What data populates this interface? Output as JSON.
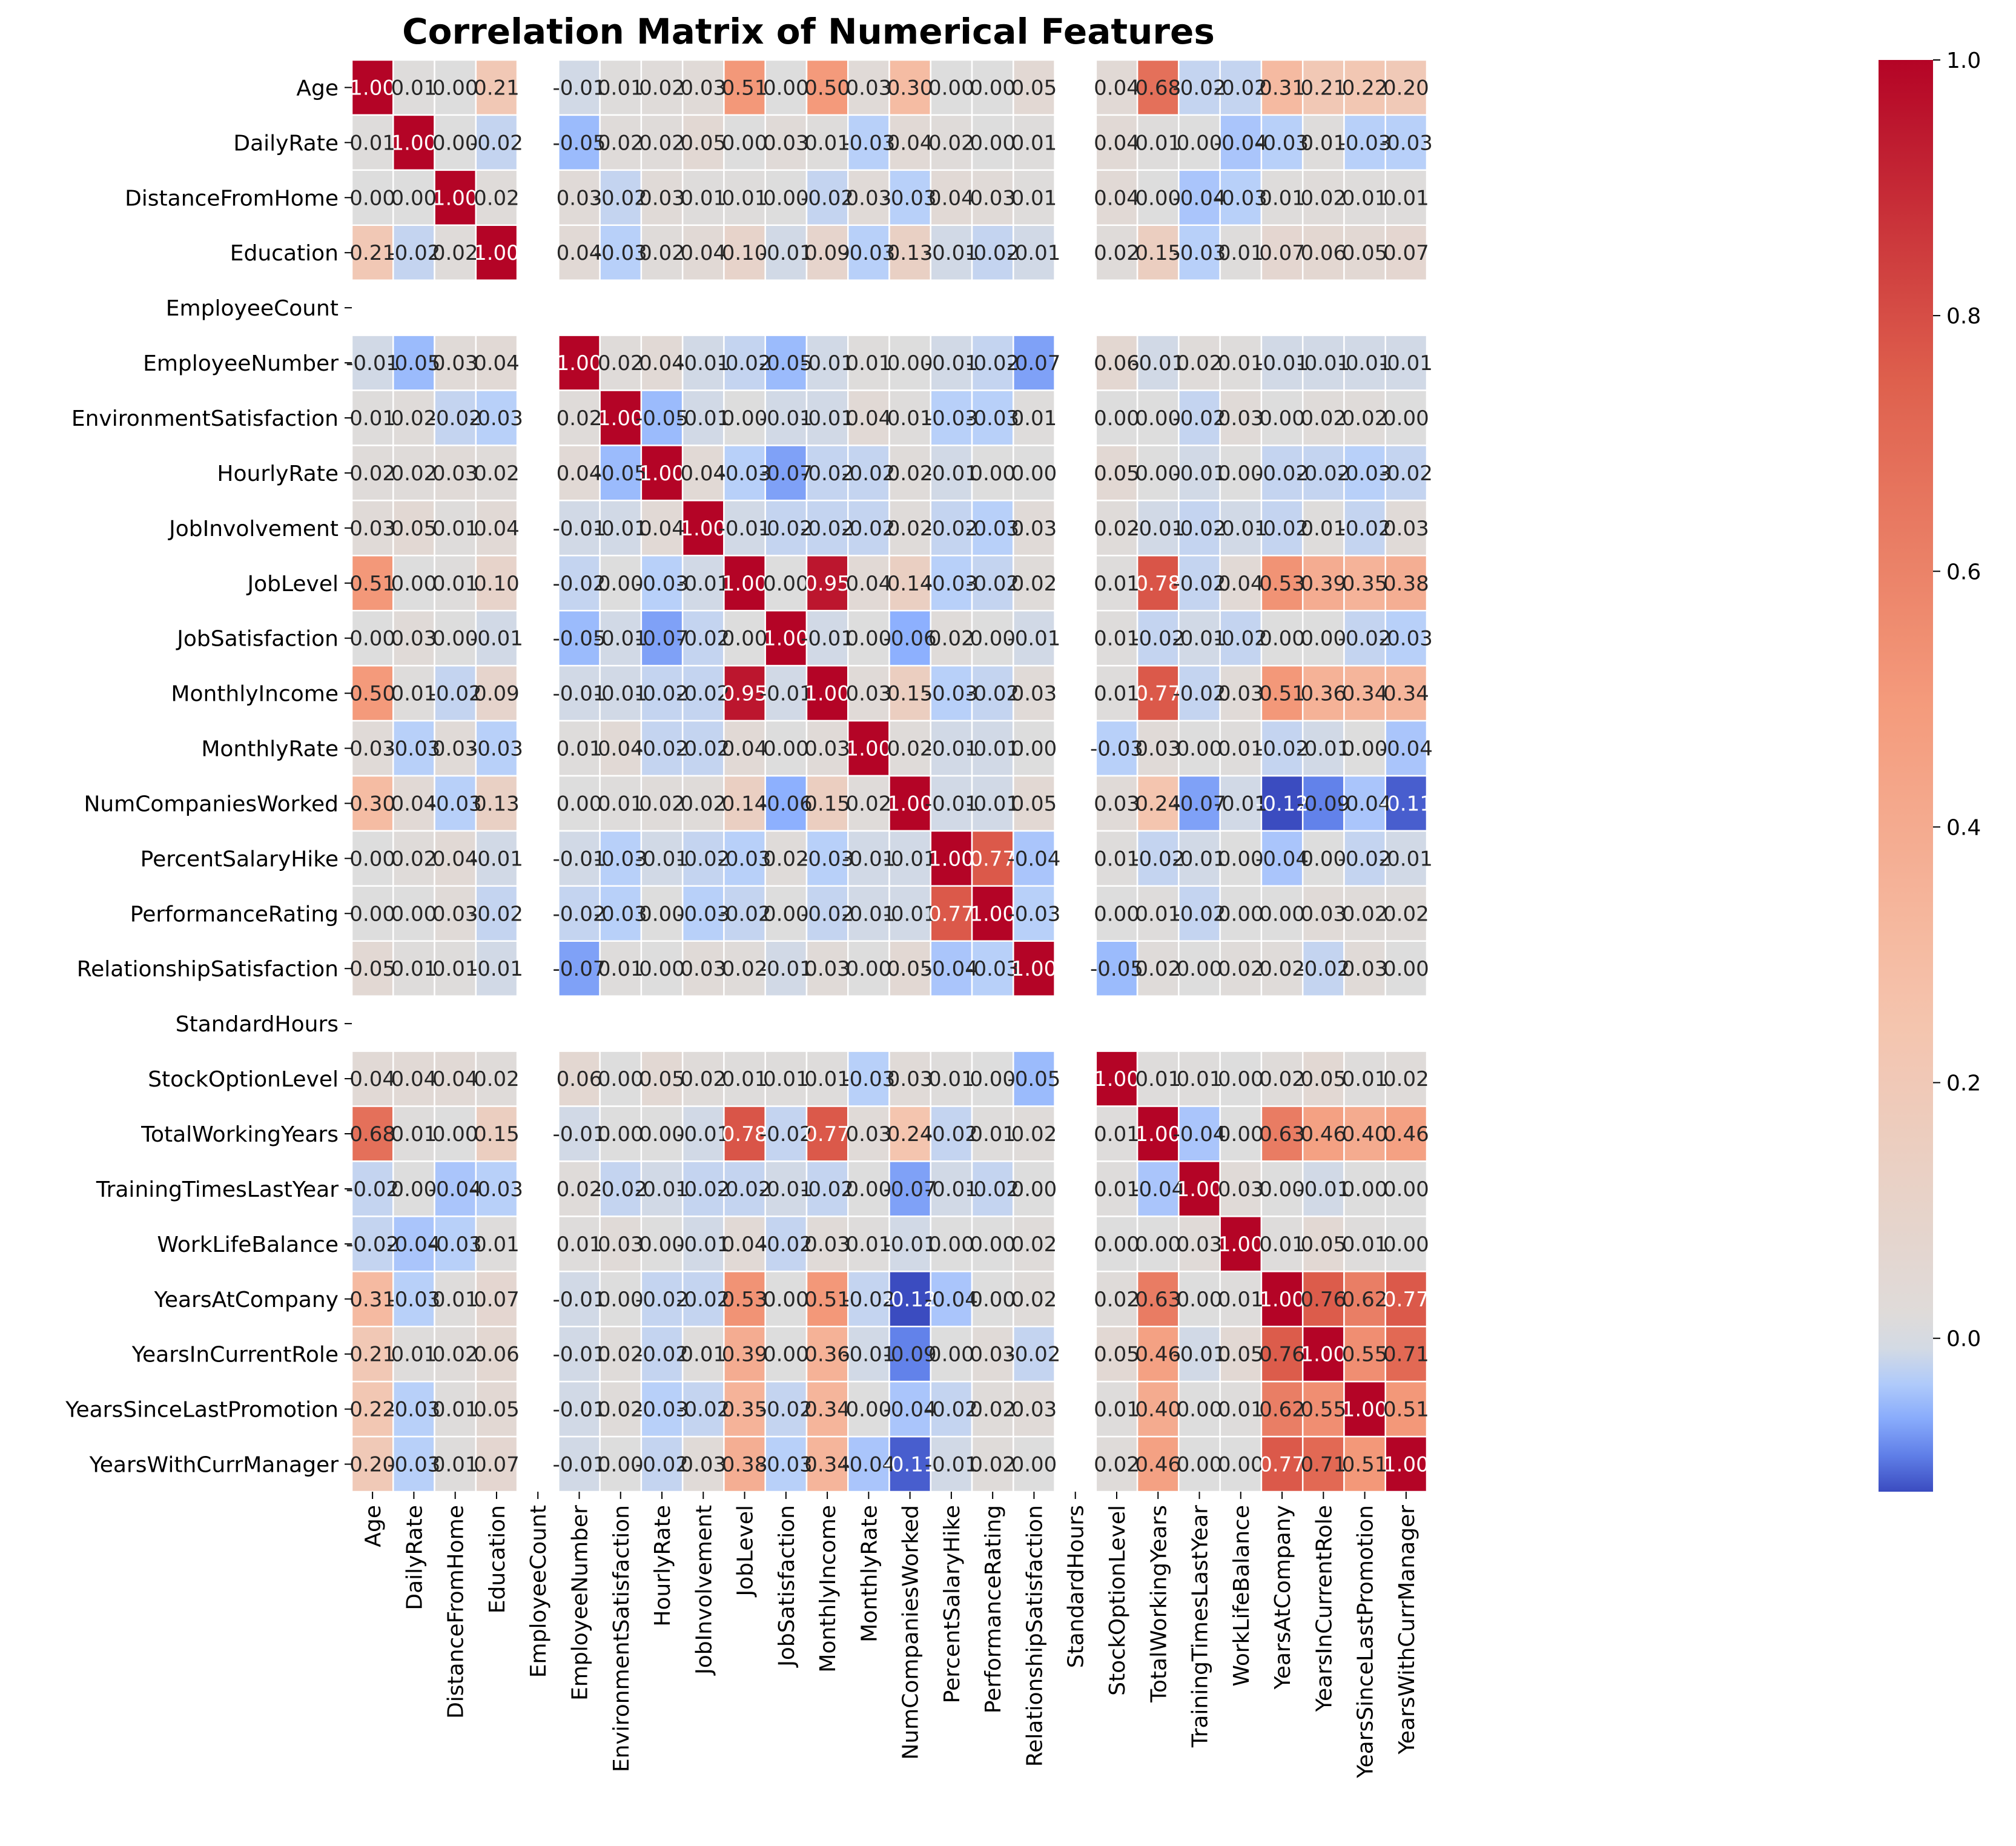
{
  "chart_data": {
    "type": "heatmap",
    "title": "Correlation Matrix of Numerical Features",
    "xlabel": "",
    "ylabel": "",
    "colormap": "coolwarm",
    "color_range": [
      -0.12,
      1.0
    ],
    "colorbar_ticks": [
      {
        "value": 0.0,
        "label": "0.0"
      },
      {
        "value": 0.2,
        "label": "0.2"
      },
      {
        "value": 0.4,
        "label": "0.4"
      },
      {
        "value": 0.6,
        "label": "0.6"
      },
      {
        "value": 0.8,
        "label": "0.8"
      },
      {
        "value": 1.0,
        "label": "1.0"
      }
    ],
    "colorbar_tick_labels": [
      "0.0",
      "0.2",
      "0.4",
      "0.6",
      "0.8",
      "1.0"
    ],
    "categories": [
      "Age",
      "DailyRate",
      "DistanceFromHome",
      "Education",
      "EmployeeCount",
      "EmployeeNumber",
      "EnvironmentSatisfaction",
      "HourlyRate",
      "JobInvolvement",
      "JobLevel",
      "JobSatisfaction",
      "MonthlyIncome",
      "MonthlyRate",
      "NumCompaniesWorked",
      "PercentSalaryHike",
      "PerformanceRating",
      "RelationshipSatisfaction",
      "StandardHours",
      "StockOptionLevel",
      "TotalWorkingYears",
      "TrainingTimesLastYear",
      "WorkLifeBalance",
      "YearsAtCompany",
      "YearsInCurrentRole",
      "YearsSinceLastPromotion",
      "YearsWithCurrManager"
    ],
    "values": [
      [
        1.0,
        0.01,
        -0.0,
        0.21,
        null,
        -0.01,
        0.01,
        0.02,
        0.03,
        0.51,
        -0.0,
        0.5,
        0.03,
        0.3,
        0.0,
        0.0,
        0.05,
        null,
        0.04,
        0.68,
        -0.02,
        -0.02,
        0.31,
        0.21,
        0.22,
        0.2
      ],
      [
        0.01,
        1.0,
        -0.0,
        -0.02,
        null,
        -0.05,
        0.02,
        0.02,
        0.05,
        0.0,
        0.03,
        0.01,
        -0.03,
        0.04,
        0.02,
        0.0,
        0.01,
        null,
        0.04,
        0.01,
        0.0,
        -0.04,
        -0.03,
        0.01,
        -0.03,
        -0.03
      ],
      [
        -0.0,
        -0.0,
        1.0,
        0.02,
        null,
        0.03,
        -0.02,
        0.03,
        0.01,
        0.01,
        -0.0,
        -0.02,
        0.03,
        -0.03,
        0.04,
        0.03,
        0.01,
        null,
        0.04,
        0.0,
        -0.04,
        -0.03,
        0.01,
        0.02,
        0.01,
        0.01
      ],
      [
        0.21,
        -0.02,
        0.02,
        1.0,
        null,
        0.04,
        -0.03,
        0.02,
        0.04,
        0.1,
        -0.01,
        0.09,
        -0.03,
        0.13,
        -0.01,
        -0.02,
        -0.01,
        null,
        0.02,
        0.15,
        -0.03,
        0.01,
        0.07,
        0.06,
        0.05,
        0.07
      ],
      [
        null,
        null,
        null,
        null,
        null,
        null,
        null,
        null,
        null,
        null,
        null,
        null,
        null,
        null,
        null,
        null,
        null,
        null,
        null,
        null,
        null,
        null,
        null,
        null,
        null,
        null
      ],
      [
        -0.01,
        -0.05,
        0.03,
        0.04,
        null,
        1.0,
        0.02,
        0.04,
        -0.01,
        -0.02,
        -0.05,
        -0.01,
        0.01,
        -0.0,
        -0.01,
        -0.02,
        -0.07,
        null,
        0.06,
        -0.01,
        0.02,
        0.01,
        -0.01,
        -0.01,
        -0.01,
        -0.01
      ],
      [
        0.01,
        0.02,
        -0.02,
        -0.03,
        null,
        0.02,
        1.0,
        -0.05,
        -0.01,
        0.0,
        -0.01,
        -0.01,
        0.04,
        0.01,
        -0.03,
        -0.03,
        0.01,
        null,
        0.0,
        -0.0,
        -0.02,
        0.03,
        0.0,
        0.02,
        0.02,
        -0.0
      ],
      [
        0.02,
        0.02,
        0.03,
        0.02,
        null,
        0.04,
        -0.05,
        1.0,
        0.04,
        -0.03,
        -0.07,
        -0.02,
        -0.02,
        0.02,
        -0.01,
        -0.0,
        0.0,
        null,
        0.05,
        -0.0,
        -0.01,
        -0.0,
        -0.02,
        -0.02,
        -0.03,
        -0.02
      ],
      [
        0.03,
        0.05,
        0.01,
        0.04,
        null,
        -0.01,
        -0.01,
        0.04,
        1.0,
        -0.01,
        -0.02,
        -0.02,
        -0.02,
        0.02,
        -0.02,
        -0.03,
        0.03,
        null,
        0.02,
        -0.01,
        -0.02,
        -0.01,
        -0.02,
        0.01,
        -0.02,
        0.03
      ],
      [
        0.51,
        0.0,
        0.01,
        0.1,
        null,
        -0.02,
        0.0,
        -0.03,
        -0.01,
        1.0,
        -0.0,
        0.95,
        0.04,
        0.14,
        -0.03,
        -0.02,
        0.02,
        null,
        0.01,
        0.78,
        -0.02,
        0.04,
        0.53,
        0.39,
        0.35,
        0.38
      ],
      [
        -0.0,
        0.03,
        -0.0,
        -0.01,
        null,
        -0.05,
        -0.01,
        -0.07,
        -0.02,
        -0.0,
        1.0,
        -0.01,
        0.0,
        -0.06,
        0.02,
        0.0,
        -0.01,
        null,
        0.01,
        -0.02,
        -0.01,
        -0.02,
        -0.0,
        -0.0,
        -0.02,
        -0.03
      ],
      [
        0.5,
        0.01,
        -0.02,
        0.09,
        null,
        -0.01,
        -0.01,
        -0.02,
        -0.02,
        0.95,
        -0.01,
        1.0,
        0.03,
        0.15,
        -0.03,
        -0.02,
        0.03,
        null,
        0.01,
        0.77,
        -0.02,
        0.03,
        0.51,
        0.36,
        0.34,
        0.34
      ],
      [
        0.03,
        -0.03,
        0.03,
        -0.03,
        null,
        0.01,
        0.04,
        -0.02,
        -0.02,
        0.04,
        0.0,
        0.03,
        1.0,
        0.02,
        -0.01,
        -0.01,
        -0.0,
        null,
        -0.03,
        0.03,
        0.0,
        0.01,
        -0.02,
        -0.01,
        0.0,
        -0.04
      ],
      [
        0.3,
        0.04,
        -0.03,
        0.13,
        null,
        -0.0,
        0.01,
        0.02,
        0.02,
        0.14,
        -0.06,
        0.15,
        0.02,
        1.0,
        -0.01,
        -0.01,
        0.05,
        null,
        0.03,
        0.24,
        -0.07,
        -0.01,
        -0.12,
        -0.09,
        -0.04,
        -0.11
      ],
      [
        0.0,
        0.02,
        0.04,
        -0.01,
        null,
        -0.01,
        -0.03,
        -0.01,
        -0.02,
        -0.03,
        0.02,
        -0.03,
        -0.01,
        -0.01,
        1.0,
        0.77,
        -0.04,
        null,
        0.01,
        -0.02,
        -0.01,
        -0.0,
        -0.04,
        -0.0,
        -0.02,
        -0.01
      ],
      [
        0.0,
        0.0,
        0.03,
        -0.02,
        null,
        -0.02,
        -0.03,
        -0.0,
        -0.03,
        -0.02,
        0.0,
        -0.02,
        -0.01,
        -0.01,
        0.77,
        1.0,
        -0.03,
        null,
        0.0,
        0.01,
        -0.02,
        0.0,
        0.0,
        0.03,
        0.02,
        0.02
      ],
      [
        0.05,
        0.01,
        0.01,
        -0.01,
        null,
        -0.07,
        0.01,
        0.0,
        0.03,
        0.02,
        -0.01,
        0.03,
        -0.0,
        0.05,
        -0.04,
        -0.03,
        1.0,
        null,
        -0.05,
        0.02,
        0.0,
        0.02,
        0.02,
        -0.02,
        0.03,
        -0.0
      ],
      [
        null,
        null,
        null,
        null,
        null,
        null,
        null,
        null,
        null,
        null,
        null,
        null,
        null,
        null,
        null,
        null,
        null,
        null,
        null,
        null,
        null,
        null,
        null,
        null,
        null,
        null
      ],
      [
        0.04,
        0.04,
        0.04,
        0.02,
        null,
        0.06,
        0.0,
        0.05,
        0.02,
        0.01,
        0.01,
        0.01,
        -0.03,
        0.03,
        0.01,
        0.0,
        -0.05,
        null,
        1.0,
        0.01,
        0.01,
        0.0,
        0.02,
        0.05,
        0.01,
        0.02
      ],
      [
        0.68,
        0.01,
        0.0,
        0.15,
        null,
        -0.01,
        -0.0,
        -0.0,
        -0.01,
        0.78,
        -0.02,
        0.77,
        0.03,
        0.24,
        -0.02,
        0.01,
        0.02,
        null,
        0.01,
        1.0,
        -0.04,
        0.0,
        0.63,
        0.46,
        0.4,
        0.46
      ],
      [
        -0.02,
        0.0,
        -0.04,
        -0.03,
        null,
        0.02,
        -0.02,
        -0.01,
        -0.02,
        -0.02,
        -0.01,
        -0.02,
        0.0,
        -0.07,
        -0.01,
        -0.02,
        0.0,
        null,
        0.01,
        -0.04,
        1.0,
        0.03,
        0.0,
        -0.01,
        -0.0,
        -0.0
      ],
      [
        -0.02,
        -0.04,
        -0.03,
        0.01,
        null,
        0.01,
        0.03,
        -0.0,
        -0.01,
        0.04,
        -0.02,
        0.03,
        0.01,
        -0.01,
        -0.0,
        0.0,
        0.02,
        null,
        0.0,
        0.0,
        0.03,
        1.0,
        0.01,
        0.05,
        0.01,
        0.0
      ],
      [
        0.31,
        -0.03,
        0.01,
        0.07,
        null,
        -0.01,
        0.0,
        -0.02,
        -0.02,
        0.53,
        -0.0,
        0.51,
        -0.02,
        -0.12,
        -0.04,
        0.0,
        0.02,
        null,
        0.02,
        0.63,
        0.0,
        0.01,
        1.0,
        0.76,
        0.62,
        0.77
      ],
      [
        0.21,
        0.01,
        0.02,
        0.06,
        null,
        -0.01,
        0.02,
        -0.02,
        0.01,
        0.39,
        -0.0,
        0.36,
        -0.01,
        -0.09,
        0.0,
        0.03,
        -0.02,
        null,
        0.05,
        0.46,
        -0.01,
        0.05,
        0.76,
        1.0,
        0.55,
        0.71
      ],
      [
        0.22,
        -0.03,
        0.01,
        0.05,
        null,
        -0.01,
        0.02,
        -0.03,
        -0.02,
        0.35,
        -0.02,
        0.34,
        0.0,
        -0.04,
        -0.02,
        0.02,
        0.03,
        null,
        0.01,
        0.4,
        -0.0,
        0.01,
        0.62,
        0.55,
        1.0,
        0.51
      ],
      [
        0.2,
        -0.03,
        0.01,
        0.07,
        null,
        -0.01,
        -0.0,
        -0.02,
        0.03,
        0.38,
        -0.03,
        0.34,
        -0.04,
        -0.11,
        -0.01,
        0.02,
        -0.0,
        null,
        0.02,
        0.46,
        -0.0,
        0.0,
        0.77,
        0.71,
        0.51,
        1.0
      ]
    ]
  }
}
